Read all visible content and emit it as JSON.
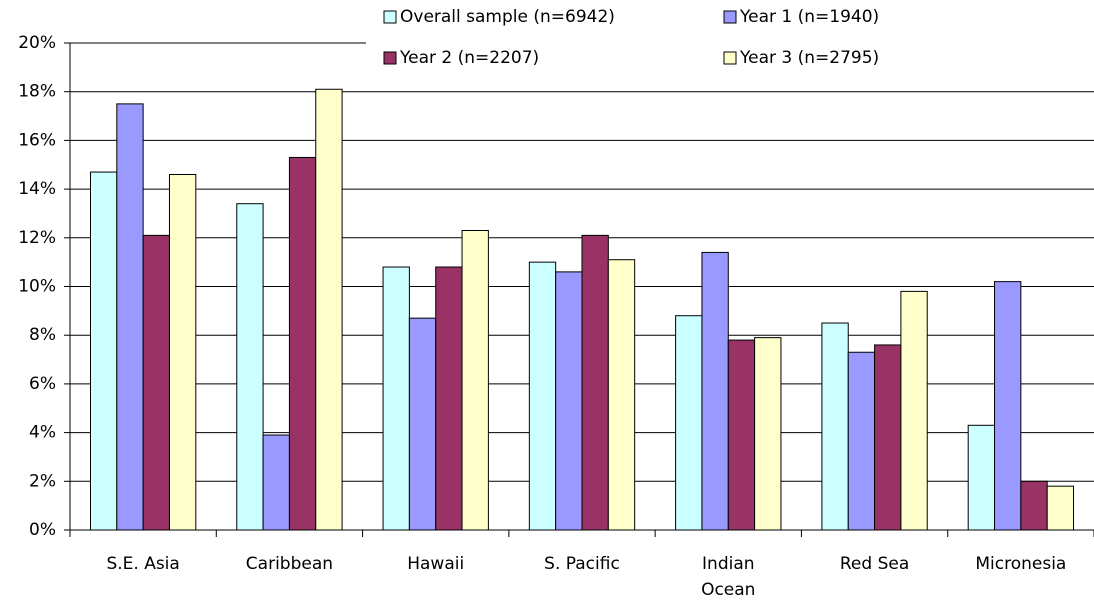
{
  "chart_data": {
    "type": "bar",
    "categories": [
      "S.E. Asia",
      "Caribbean",
      "Hawaii",
      "S. Pacific",
      "Indian Ocean",
      "Red Sea",
      "Micronesia"
    ],
    "series": [
      {
        "name": "Overall sample (n=6942)",
        "color": "#ccffff",
        "values": [
          14.7,
          13.4,
          10.8,
          11.0,
          8.8,
          8.5,
          4.3
        ]
      },
      {
        "name": "Year 1 (n=1940)",
        "color": "#9999ff",
        "values": [
          17.5,
          3.9,
          8.7,
          10.6,
          11.4,
          7.3,
          10.2
        ]
      },
      {
        "name": "Year 2 (n=2207)",
        "color": "#993366",
        "values": [
          12.1,
          15.3,
          10.8,
          12.1,
          7.8,
          7.6,
          2.0
        ]
      },
      {
        "name": "Year 3 (n=2795)",
        "color": "#ffffcc",
        "values": [
          14.6,
          18.1,
          12.3,
          11.1,
          7.9,
          9.8,
          1.8
        ]
      }
    ],
    "ylim": [
      0,
      20
    ],
    "yticks": [
      {
        "value": 0,
        "label": "0%"
      },
      {
        "value": 2,
        "label": "2%"
      },
      {
        "value": 4,
        "label": "4%"
      },
      {
        "value": 6,
        "label": "6%"
      },
      {
        "value": 8,
        "label": "8%"
      },
      {
        "value": 10,
        "label": "10%"
      },
      {
        "value": 12,
        "label": "12%"
      },
      {
        "value": 14,
        "label": "14%"
      },
      {
        "value": 16,
        "label": "16%"
      },
      {
        "value": 18,
        "label": "18%"
      },
      {
        "value": 20,
        "label": "20%"
      }
    ],
    "grid": true
  }
}
